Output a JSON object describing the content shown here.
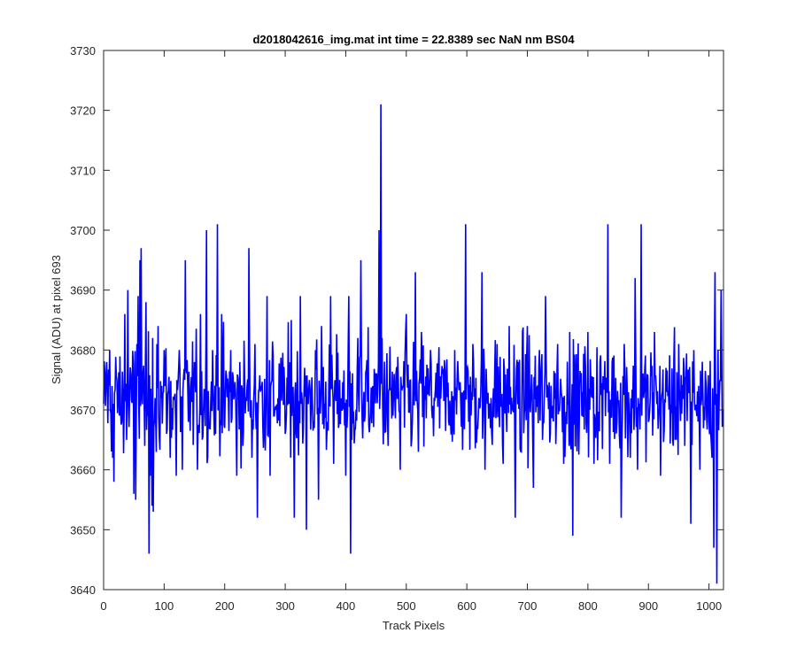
{
  "chart_data": {
    "type": "line",
    "title": "d2018042616_img.mat int time = 22.8389 sec  NaN nm BS04",
    "xlabel": "Track Pixels",
    "ylabel": "Signal (ADU) at pixel 693",
    "xlim": [
      0,
      1024
    ],
    "ylim": [
      3640,
      3730
    ],
    "xticks": [
      0,
      100,
      200,
      300,
      400,
      500,
      600,
      700,
      800,
      900,
      1000
    ],
    "yticks": [
      3640,
      3650,
      3660,
      3670,
      3680,
      3690,
      3700,
      3710,
      3720,
      3730
    ],
    "grid": false,
    "box": true,
    "series": [
      {
        "color": "#0000ff",
        "baseline_mean": 3672,
        "spread_typical": [
          3655,
          3690
        ],
        "points": [
          [
            0,
            3671
          ],
          [
            5,
            3678
          ],
          [
            10,
            3680
          ],
          [
            15,
            3662
          ],
          [
            17,
            3658
          ],
          [
            22,
            3675
          ],
          [
            30,
            3668
          ],
          [
            35,
            3686
          ],
          [
            38,
            3665
          ],
          [
            40,
            3690
          ],
          [
            45,
            3676
          ],
          [
            50,
            3656
          ],
          [
            53,
            3655
          ],
          [
            55,
            3681
          ],
          [
            57,
            3689
          ],
          [
            60,
            3695
          ],
          [
            62,
            3697
          ],
          [
            65,
            3676
          ],
          [
            68,
            3664
          ],
          [
            70,
            3688
          ],
          [
            73,
            3669
          ],
          [
            75,
            3646
          ],
          [
            77,
            3659
          ],
          [
            80,
            3654
          ],
          [
            82,
            3653
          ],
          [
            85,
            3672
          ],
          [
            88,
            3681
          ],
          [
            90,
            3684
          ],
          [
            95,
            3672
          ],
          [
            100,
            3680
          ],
          [
            110,
            3662
          ],
          [
            115,
            3672
          ],
          [
            120,
            3659
          ],
          [
            125,
            3680
          ],
          [
            130,
            3660
          ],
          [
            135,
            3695
          ],
          [
            140,
            3668
          ],
          [
            150,
            3678
          ],
          [
            155,
            3660
          ],
          [
            160,
            3686
          ],
          [
            165,
            3670
          ],
          [
            170,
            3700
          ],
          [
            175,
            3668
          ],
          [
            180,
            3680
          ],
          [
            185,
            3666
          ],
          [
            188,
            3701
          ],
          [
            190,
            3672
          ],
          [
            195,
            3686
          ],
          [
            200,
            3667
          ],
          [
            210,
            3680
          ],
          [
            220,
            3659
          ],
          [
            225,
            3678
          ],
          [
            230,
            3664
          ],
          [
            240,
            3697
          ],
          [
            245,
            3662
          ],
          [
            250,
            3681
          ],
          [
            254,
            3652
          ],
          [
            260,
            3674
          ],
          [
            265,
            3667
          ],
          [
            270,
            3689
          ],
          [
            275,
            3659
          ],
          [
            280,
            3679
          ],
          [
            285,
            3670
          ],
          [
            300,
            3666
          ],
          [
            310,
            3685
          ],
          [
            315,
            3652
          ],
          [
            325,
            3689
          ],
          [
            330,
            3667
          ],
          [
            335,
            3650
          ],
          [
            340,
            3675
          ],
          [
            350,
            3680
          ],
          [
            355,
            3655
          ],
          [
            360,
            3684
          ],
          [
            370,
            3668
          ],
          [
            375,
            3689
          ],
          [
            380,
            3661
          ],
          [
            390,
            3675
          ],
          [
            400,
            3659
          ],
          [
            405,
            3689
          ],
          [
            408,
            3646
          ],
          [
            410,
            3665
          ],
          [
            420,
            3682
          ],
          [
            425,
            3695
          ],
          [
            430,
            3673
          ],
          [
            440,
            3668
          ],
          [
            450,
            3676
          ],
          [
            455,
            3700
          ],
          [
            458,
            3721
          ],
          [
            460,
            3682
          ],
          [
            470,
            3664
          ],
          [
            480,
            3676
          ],
          [
            490,
            3660
          ],
          [
            500,
            3686
          ],
          [
            510,
            3668
          ],
          [
            515,
            3693
          ],
          [
            520,
            3663
          ],
          [
            525,
            3683
          ],
          [
            530,
            3674
          ],
          [
            540,
            3680
          ],
          [
            550,
            3672
          ],
          [
            560,
            3676
          ],
          [
            570,
            3668
          ],
          [
            580,
            3680
          ],
          [
            590,
            3671
          ],
          [
            598,
            3701
          ],
          [
            603,
            3668
          ],
          [
            610,
            3681
          ],
          [
            620,
            3672
          ],
          [
            625,
            3693
          ],
          [
            630,
            3660
          ],
          [
            640,
            3672
          ],
          [
            650,
            3681
          ],
          [
            660,
            3661
          ],
          [
            670,
            3684
          ],
          [
            680,
            3652
          ],
          [
            685,
            3678
          ],
          [
            690,
            3663
          ],
          [
            700,
            3684
          ],
          [
            710,
            3657
          ],
          [
            720,
            3680
          ],
          [
            725,
            3665
          ],
          [
            730,
            3689
          ],
          [
            740,
            3669
          ],
          [
            750,
            3681
          ],
          [
            760,
            3661
          ],
          [
            770,
            3683
          ],
          [
            775,
            3649
          ],
          [
            780,
            3676
          ],
          [
            790,
            3669
          ],
          [
            800,
            3683
          ],
          [
            810,
            3661
          ],
          [
            820,
            3678
          ],
          [
            833,
            3701
          ],
          [
            836,
            3661
          ],
          [
            840,
            3678
          ],
          [
            850,
            3671
          ],
          [
            855,
            3652
          ],
          [
            860,
            3681
          ],
          [
            870,
            3662
          ],
          [
            878,
            3692
          ],
          [
            882,
            3660
          ],
          [
            888,
            3701
          ],
          [
            892,
            3672
          ],
          [
            900,
            3668
          ],
          [
            910,
            3683
          ],
          [
            920,
            3659
          ],
          [
            930,
            3673
          ],
          [
            940,
            3665
          ],
          [
            950,
            3681
          ],
          [
            960,
            3664
          ],
          [
            965,
            3676
          ],
          [
            970,
            3651
          ],
          [
            975,
            3680
          ],
          [
            985,
            3660
          ],
          [
            990,
            3673
          ],
          [
            1000,
            3668
          ],
          [
            1005,
            3662
          ],
          [
            1008,
            3647
          ],
          [
            1010,
            3693
          ],
          [
            1013,
            3641
          ],
          [
            1015,
            3680
          ],
          [
            1020,
            3690
          ],
          [
            1023,
            3670
          ]
        ]
      }
    ]
  }
}
